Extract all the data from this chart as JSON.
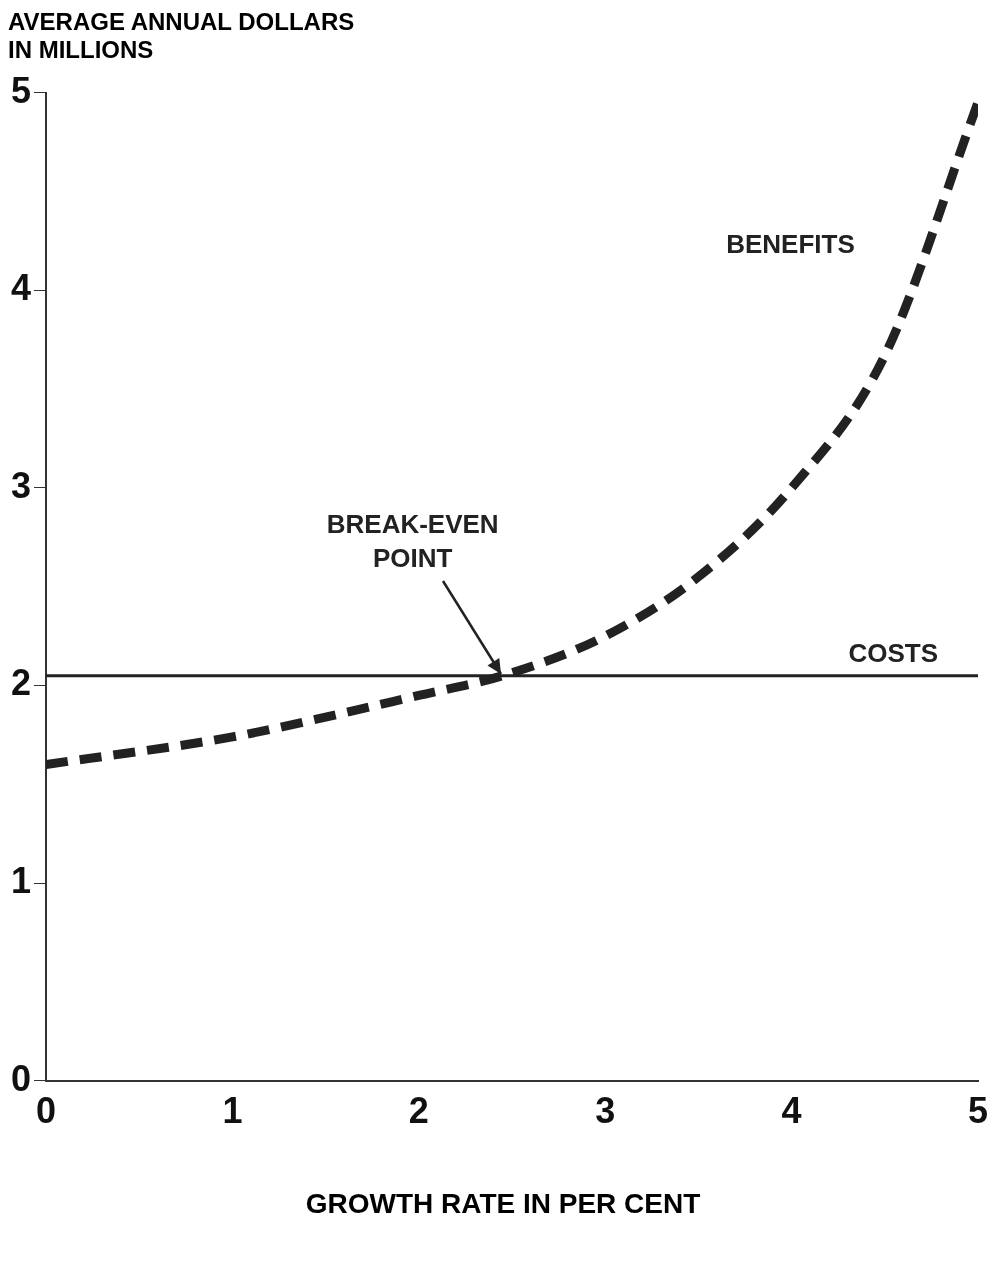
{
  "chart_data": {
    "type": "line",
    "ylabel": "AVERAGE ANNUAL DOLLARS\nIN MILLIONS",
    "xlabel": "GROWTH RATE IN PER CENT",
    "x": [
      0,
      1,
      1.5,
      2,
      2.45,
      3,
      3.5,
      4,
      4.5,
      5
    ],
    "series": [
      {
        "name": "BENEFITS",
        "color": "#222222",
        "line_style": "dashed",
        "values": [
          1.6,
          1.74,
          1.84,
          1.95,
          2.05,
          2.25,
          2.55,
          3.0,
          3.67,
          4.95
        ]
      },
      {
        "name": "COSTS",
        "color": "#222222",
        "line_style": "solid",
        "x": [
          0,
          5
        ],
        "values": [
          2.05,
          2.05
        ]
      }
    ],
    "annotations": [
      {
        "text": "BREAK-EVEN POINT",
        "x": 2.45,
        "y": 2.05
      }
    ],
    "xlim": [
      0,
      5
    ],
    "ylim": [
      0,
      5
    ],
    "xticks": [
      0,
      1,
      2,
      3,
      4,
      5
    ],
    "yticks": [
      0,
      1,
      2,
      3,
      4,
      5
    ],
    "grid": false,
    "legend": false,
    "marker": "none"
  }
}
